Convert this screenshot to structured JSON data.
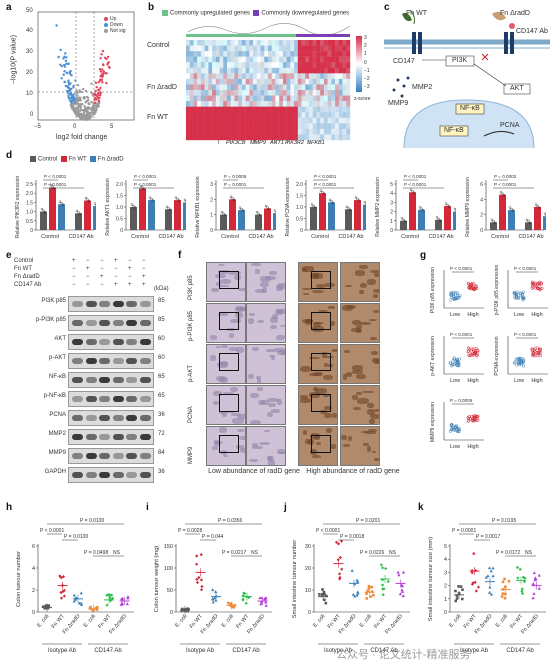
{
  "panel_letters": [
    "a",
    "b",
    "c",
    "d",
    "e",
    "f",
    "g",
    "h",
    "i",
    "j",
    "k"
  ],
  "colors": {
    "up": "#e0445a",
    "down": "#4a8fd0",
    "notsig": "#9b9b9b",
    "control": "#5a5a5a",
    "fnwt": "#d2283a",
    "fnradD": "#3d7fb5",
    "orange": "#f08b3c",
    "green": "#2fbf50",
    "purple": "#b23dd6"
  },
  "panel_a": {
    "xlabel": "log2 fold change",
    "ylabel": "−log10(P value)",
    "legend": [
      "Up",
      "Down",
      "Not sig"
    ],
    "xticks": [
      "−5",
      "0",
      "5"
    ],
    "yticks": [
      "0",
      "10",
      "20",
      "30",
      "40",
      "50"
    ]
  },
  "panel_b": {
    "legend_up": "Commonly upregulated genes",
    "legend_down": "Commonly downregulated genes",
    "rows": [
      "Control",
      "Fn ΔradD",
      "Fn WT"
    ],
    "genes": [
      "PIK3CB",
      "MMP9",
      "AKT1",
      "PIK3R2",
      "NFKB1"
    ],
    "scale_label": "z-score",
    "scale_ticks": [
      "3",
      "2",
      "1",
      "0",
      "−1",
      "−2",
      "−3"
    ]
  },
  "panel_c": {
    "labels": [
      "Fn WT",
      "Fn ΔradD",
      "CD147 Ab",
      "CD147",
      "PI3K",
      "AKT",
      "MMP2",
      "MMP9",
      "NF-κB",
      "NF-κB",
      "PCNA"
    ]
  },
  "panel_d": {
    "legend": [
      "Control",
      "Fn WT",
      "Fn ΔradD"
    ],
    "groups": [
      "Control",
      "CD147 Ab"
    ],
    "charts": [
      {
        "ylabel": "Relative PIK3R2 expression",
        "yticks": [
          "0",
          "0.5",
          "1.0",
          "1.5",
          "2.0",
          "2.5"
        ],
        "ymax": 2.5,
        "p": [
          "P < 0.0001",
          "P < 0.0001"
        ],
        "values": [
          1.0,
          2.3,
          1.4,
          0.9,
          1.6,
          1.3
        ]
      },
      {
        "ylabel": "Relative AKT1 expression",
        "yticks": [
          "0",
          "0.5",
          "1.0",
          "1.5",
          "2.0"
        ],
        "ymax": 2.0,
        "p": [
          "P < 0.0001",
          "P < 0.0001"
        ],
        "values": [
          1.0,
          1.8,
          1.3,
          0.9,
          1.3,
          1.2
        ]
      },
      {
        "ylabel": "Relative NFKB1 expression",
        "yticks": [
          "0",
          "1",
          "2",
          "3"
        ],
        "ymax": 3.0,
        "p": [
          "P = 0.0005",
          "P = 0.0001"
        ],
        "values": [
          1.0,
          2.0,
          1.3,
          1.0,
          1.4,
          1.1
        ]
      },
      {
        "ylabel": "Relative PCNA expression",
        "yticks": [
          "0",
          "0.5",
          "1.0",
          "1.5",
          "2.0"
        ],
        "ymax": 2.0,
        "p": [
          "P < 0.0001",
          "P < 0.0001"
        ],
        "values": [
          1.0,
          1.6,
          1.2,
          0.9,
          1.3,
          1.1
        ]
      },
      {
        "ylabel": "Relative MMP2 expression",
        "yticks": [
          "0",
          "1",
          "2",
          "3",
          "4",
          "5"
        ],
        "ymax": 5.0,
        "p": [
          "P < 0.0001",
          "P < 0.0001"
        ],
        "values": [
          1.0,
          4.1,
          2.2,
          1.1,
          2.6,
          2.0
        ]
      },
      {
        "ylabel": "Relative MMP9 expression",
        "yticks": [
          "0",
          "2",
          "4",
          "6"
        ],
        "ymax": 6.0,
        "p": [
          "P = 0.0002",
          "P < 0.0001"
        ],
        "values": [
          1.0,
          4.6,
          2.6,
          1.0,
          3.0,
          1.8
        ]
      }
    ]
  },
  "panel_e": {
    "conditions": [
      "Control",
      "Fn WT",
      "Fn ΔradD",
      "CD147 Ab"
    ],
    "signs": [
      [
        "+",
        "−",
        "−",
        "+",
        "−",
        "−"
      ],
      [
        "−",
        "+",
        "−",
        "−",
        "+",
        "−"
      ],
      [
        "−",
        "−",
        "+",
        "−",
        "−",
        "+"
      ],
      [
        "−",
        "−",
        "−",
        "+",
        "+",
        "+"
      ]
    ],
    "kda_label": "(kDa)",
    "bands": [
      {
        "name": "PI3K p85",
        "kda": "85"
      },
      {
        "name": "p-PI3K p85",
        "kda": "85"
      },
      {
        "name": "AKT",
        "kda": "60"
      },
      {
        "name": "p-AKT",
        "kda": "60"
      },
      {
        "name": "NF-κB",
        "kda": "65"
      },
      {
        "name": "p-NF-κB",
        "kda": "65"
      },
      {
        "name": "PCNA",
        "kda": "36"
      },
      {
        "name": "MMP2",
        "kda": "72"
      },
      {
        "name": "MMP9",
        "kda": "84"
      },
      {
        "name": "GAPDH",
        "kda": "36"
      }
    ]
  },
  "panel_f": {
    "rows": [
      "PI3K p85",
      "p-PI3K p85",
      "p-AKT",
      "PCNA",
      "MMP9"
    ],
    "caption_low": "Low abundance of radD gene",
    "caption_high": "High abundance of radD gene"
  },
  "panel_g": {
    "charts": [
      {
        "ylabel": "PI3K p85 expression",
        "p": "P < 0.0001"
      },
      {
        "ylabel": "p-PI3K p85 expression",
        "p": "P < 0.0001"
      },
      {
        "ylabel": "p-AKT expression",
        "p": "P < 0.0001"
      },
      {
        "ylabel": "PCNA expression",
        "p": "P < 0.0001"
      },
      {
        "ylabel": "MMP9 expression",
        "p": "P = 0.0005"
      }
    ],
    "xcats": [
      "Low",
      "High"
    ]
  },
  "bottom_charts": [
    {
      "letter": "h",
      "ylabel": "Colon tumour number",
      "yticks": [
        "0",
        "2",
        "4",
        "6"
      ],
      "ymax": 6,
      "p_top": "P = 0.0100",
      "p_left": "P < 0.0001",
      "p_mid": "P = 0.0100",
      "p_right": "P = 0.0498",
      "ns": "NS",
      "means": [
        0.4,
        2.4,
        1.2,
        0.3,
        1.1,
        1.0
      ]
    },
    {
      "letter": "i",
      "ylabel": "Colon tumour weight (mg)",
      "yticks": [
        "0",
        "50",
        "100",
        "150"
      ],
      "ymax": 150,
      "p_top": "P = 0.0356",
      "p_left": "P = 0.0028",
      "p_mid": "P = 0.044",
      "p_right": "P = 0.0217",
      "ns": "NS",
      "means": [
        5,
        90,
        35,
        15,
        35,
        25
      ]
    },
    {
      "letter": "j",
      "ylabel": "Small intestine tumour number",
      "yticks": [
        "0",
        "10",
        "20",
        "30"
      ],
      "ymax": 30,
      "p_top": "P = 0.0201",
      "p_left": "P < 0.0001",
      "p_mid": "P = 0.0018",
      "p_right": "P = 0.0226",
      "ns": "NS",
      "means": [
        7,
        22,
        13,
        9,
        15,
        13
      ]
    },
    {
      "letter": "k",
      "ylabel": "Small intestine tumour size (mm)",
      "yticks": [
        "0",
        "1",
        "2",
        "3",
        "4",
        "5"
      ],
      "ymax": 5,
      "p_top": "P = 0.0195",
      "p_left": "P = 0.0001",
      "p_mid": "P = 0.0017",
      "p_right": "P = 0.0172",
      "ns": "NS",
      "means": [
        1.3,
        3.1,
        2.3,
        1.7,
        2.4,
        2.0
      ]
    }
  ],
  "bottom_xcats": [
    "E. coli",
    "Fn WT",
    "Fn ΔradD",
    "E. coli",
    "Fn WT",
    "Fn ΔradD"
  ],
  "bottom_groups": [
    "Isotype Ab",
    "CD147 Ab"
  ],
  "watermark": "公众号 · 论文统计-精准服务"
}
